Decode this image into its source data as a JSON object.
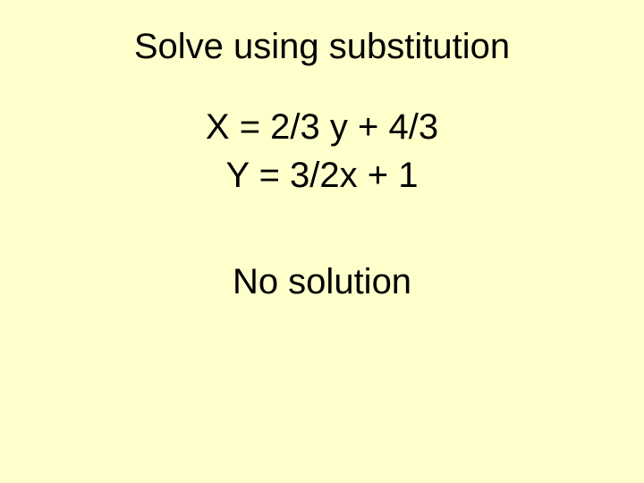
{
  "slide": {
    "title": "Solve using substitution",
    "equation1": "X = 2/3 y + 4/3",
    "equation2": "Y = 3/2x + 1",
    "result": "No solution",
    "background_color": "#ffffcc",
    "text_color": "#000000",
    "title_fontsize": 40,
    "equation_fontsize": 40,
    "result_fontsize": 40,
    "font_family": "Arial"
  }
}
